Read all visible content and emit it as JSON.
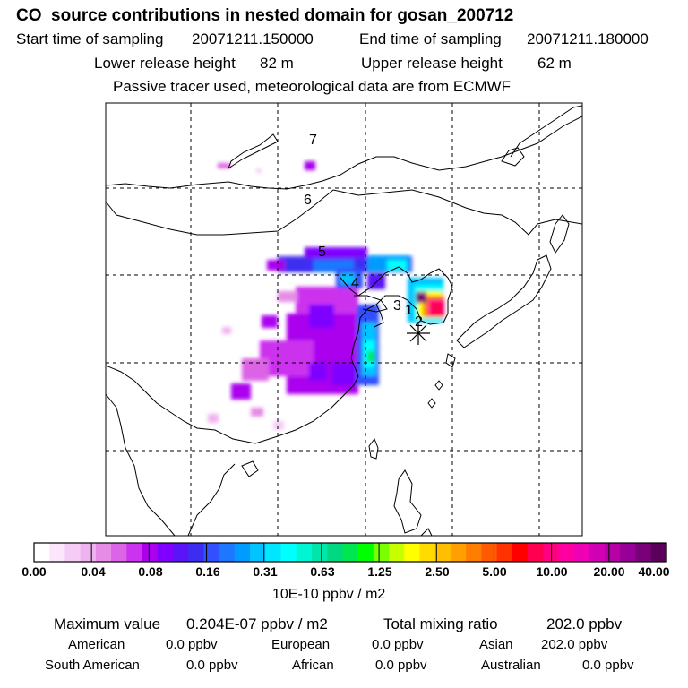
{
  "header": {
    "title": "CO  source contributions in nested domain for gosan_200712",
    "start_label": "Start time of sampling",
    "start_value": "20071211.150000",
    "end_label": "End time of sampling",
    "end_value": "20071211.180000",
    "lower_label": "Lower release height",
    "lower_value": "82 m",
    "upper_label": "Upper release height",
    "upper_value": "62 m",
    "note": "Passive tracer used, meteorological data are from ECMWF"
  },
  "map": {
    "grid": true,
    "marker_labels": [
      "1",
      "2",
      "3",
      "4",
      "5",
      "6",
      "7"
    ],
    "receptor_symbol": "asterisk"
  },
  "colorbar": {
    "labels": [
      "0.00",
      "0.04",
      "0.08",
      "0.16",
      "0.31",
      "0.63",
      "1.25",
      "2.50",
      "5.00",
      "10.00",
      "20.00",
      "40.00"
    ],
    "unit": "10E-10 ppbv / m2",
    "colors": [
      "#ffffff",
      "#fbe6fb",
      "#f5ccf5",
      "#efb3ef",
      "#e68ce6",
      "#dc64e6",
      "#cc33ee",
      "#aa00ee",
      "#7f00ff",
      "#5a14f5",
      "#3c2df0",
      "#3250ff",
      "#1e78ff",
      "#009bff",
      "#00c3ff",
      "#00e6ff",
      "#00ffff",
      "#00f5d2",
      "#00e6aa",
      "#00d982",
      "#00e650",
      "#00ff00",
      "#78ff00",
      "#c8ff00",
      "#ffff00",
      "#ffdc00",
      "#ffbe00",
      "#ffa000",
      "#ff7d00",
      "#ff5a00",
      "#ff3200",
      "#ff0000",
      "#ff0050",
      "#ff0080",
      "#ff00a0",
      "#f000b4",
      "#d200b4",
      "#b400a5",
      "#960096",
      "#780078",
      "#5a005a"
    ]
  },
  "summary": {
    "max_label": "Maximum value",
    "max_value": "0.204E-07 ppbv / m2",
    "total_label": "Total mixing ratio",
    "total_value": "202.0 ppbv",
    "regions": [
      {
        "name": "American",
        "value": "0.0 ppbv"
      },
      {
        "name": "European",
        "value": "0.0 ppbv"
      },
      {
        "name": "Asian",
        "value": "202.0 ppbv"
      },
      {
        "name": "South American",
        "value": "0.0 ppbv"
      },
      {
        "name": "African",
        "value": "0.0 ppbv"
      },
      {
        "name": "Australian",
        "value": "0.0 ppbv"
      }
    ]
  }
}
